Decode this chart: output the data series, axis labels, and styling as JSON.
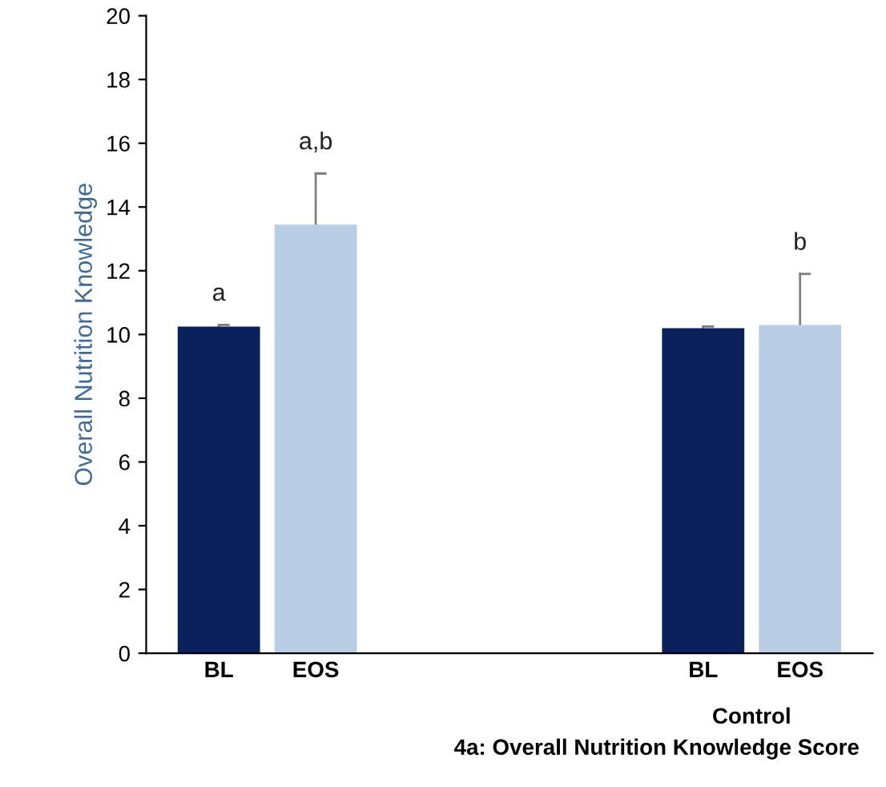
{
  "chart_data": {
    "type": "bar",
    "title": "4a: Overall Nutrition Knowledge Score",
    "ylabel": "Overall Nutrition Knowledge",
    "categories": [
      "BL",
      "EOS",
      null,
      null,
      null,
      "BL",
      "EOS"
    ],
    "values": [
      10.25,
      13.45,
      null,
      null,
      null,
      10.2,
      10.3
    ],
    "colors": [
      "#0a215c",
      "#b9cde5",
      "#0a215c",
      "#0a215c",
      "#0a215c",
      "#0a215c",
      "#b9cde5"
    ],
    "errors": [
      [
        10.25,
        10.3
      ],
      [
        13.45,
        15.05
      ],
      null,
      null,
      null,
      [
        10.2,
        10.25
      ],
      [
        10.3,
        11.9
      ]
    ],
    "value_labels": [
      "a",
      "a,b",
      null,
      null,
      null,
      null,
      "b"
    ],
    "annotations": [
      "Control"
    ],
    "ylim": [
      0,
      20
    ],
    "yticks": [
      0,
      2,
      4,
      6,
      8,
      10,
      12,
      14,
      16,
      18,
      20
    ],
    "grid": false,
    "legend": false
  }
}
